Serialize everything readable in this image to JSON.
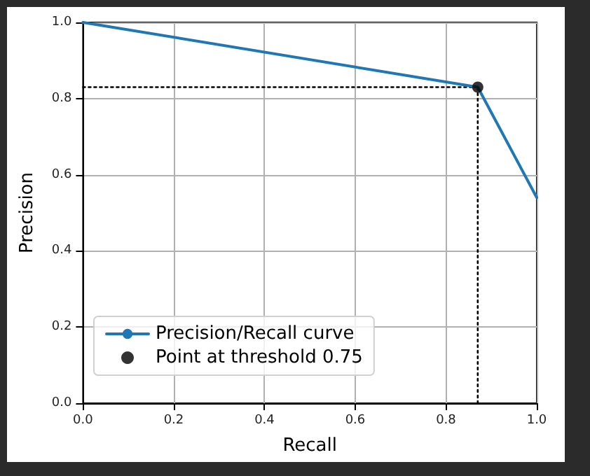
{
  "chart_data": {
    "type": "line",
    "xlabel": "Recall",
    "ylabel": "Precision",
    "xlim": [
      0,
      1
    ],
    "ylim": [
      0,
      1
    ],
    "xticks": [
      {
        "value": 0,
        "label": "0.0"
      },
      0.2,
      0.4,
      0.6,
      0.8,
      {
        "value": 1,
        "label": "1.0"
      }
    ],
    "yticks": [
      {
        "value": 0,
        "label": "0.0"
      },
      0.2,
      0.4,
      0.6,
      0.8,
      {
        "value": 1,
        "label": "1.0"
      }
    ],
    "grid": true,
    "legend": "bottom left",
    "series": [
      {
        "name": "Precision/Recall curve",
        "color": "#1f77b4",
        "x": [
          0,
          0.87,
          1
        ],
        "values": [
          1,
          0.83,
          0.54
        ],
        "marker": "none",
        "line_style": "solid"
      },
      {
        "color": "#000000",
        "x": [
          0,
          0.87
        ],
        "values": [
          0.83,
          0.83
        ],
        "marker": "none",
        "line_style": "dotted"
      },
      {
        "color": "#000000",
        "x": [
          0.87,
          0.87
        ],
        "values": [
          0,
          0.83
        ],
        "marker": "none",
        "line_style": "dotted"
      },
      {
        "name": "Point at threshold 0.75",
        "type": "scatter",
        "color": "#000000",
        "x": [
          0.87
        ],
        "values": [
          0.83
        ],
        "marker": "circle"
      }
    ]
  }
}
